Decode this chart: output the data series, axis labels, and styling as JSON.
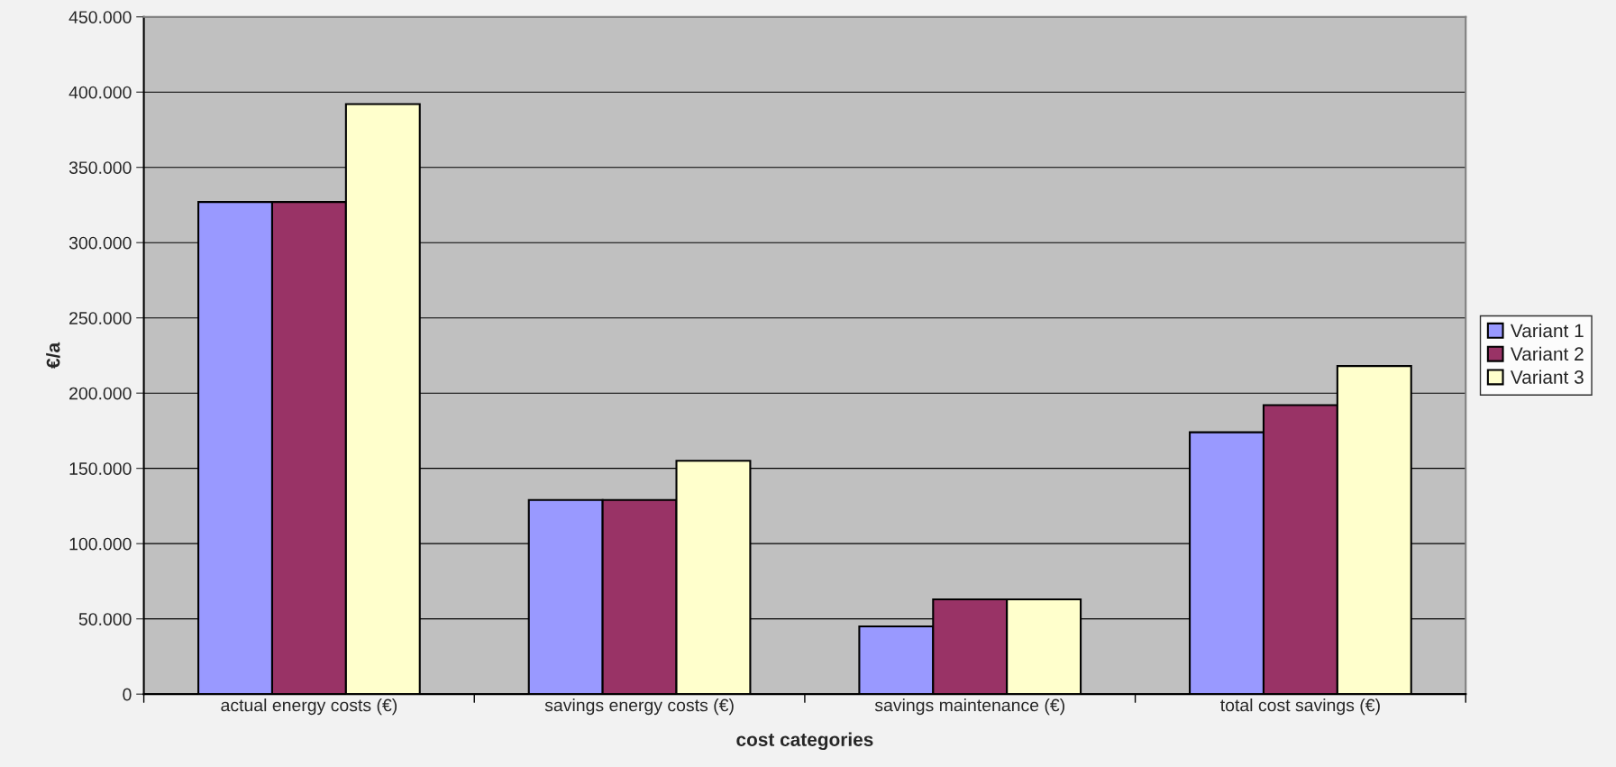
{
  "chart_data": {
    "type": "bar",
    "xlabel": "cost categories",
    "ylabel": "€/a",
    "categories": [
      "actual energy costs (€)",
      "savings energy costs (€)",
      "savings maintenance (€)",
      "total cost savings (€)"
    ],
    "series": [
      {
        "name": "Variant 1",
        "color": "#9999ff",
        "values": [
          327000,
          129000,
          45000,
          174000
        ]
      },
      {
        "name": "Variant 2",
        "color": "#993366",
        "values": [
          327000,
          129000,
          63000,
          192000
        ]
      },
      {
        "name": "Variant 3",
        "color": "#ffffcc",
        "values": [
          392000,
          155000,
          63000,
          218000
        ]
      }
    ],
    "ylim": [
      0,
      450000
    ],
    "yticks": [
      0,
      {
        "value": 50000,
        "label": "50.000"
      },
      {
        "value": 100000,
        "label": "100.000"
      },
      {
        "value": 150000,
        "label": "150.000"
      },
      {
        "value": 200000,
        "label": "200.000"
      },
      {
        "value": 250000,
        "label": "250.000"
      },
      {
        "value": 300000,
        "label": "300.000"
      },
      {
        "value": 350000,
        "label": "350.000"
      },
      {
        "value": 400000,
        "label": "400.000"
      },
      {
        "value": 450000,
        "label": "450.000"
      }
    ],
    "grid": "y",
    "legend": "right"
  }
}
